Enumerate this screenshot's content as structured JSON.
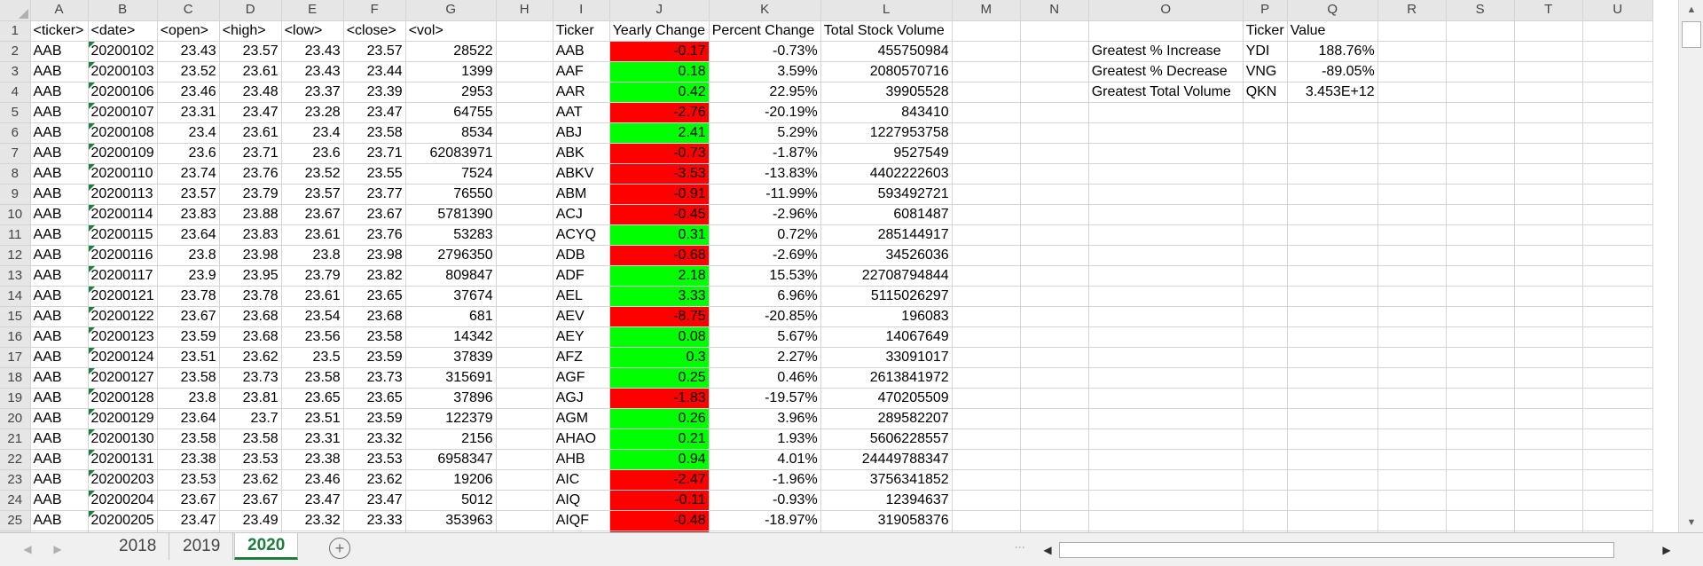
{
  "columns": [
    "A",
    "B",
    "C",
    "D",
    "E",
    "F",
    "G",
    "H",
    "I",
    "J",
    "K",
    "L",
    "M",
    "N",
    "O",
    "P",
    "Q",
    "R",
    "S",
    "T",
    "U"
  ],
  "header_row": {
    "row": "1",
    "A": "<ticker>",
    "B": "<date>",
    "C": "<open>",
    "D": "<high>",
    "E": "<low>",
    "F": "<close>",
    "G": "<vol>",
    "I": "Ticker",
    "J": "Yearly Change",
    "K": "Percent Change",
    "L": "Total Stock Volume",
    "P": "Ticker",
    "Q": "Value"
  },
  "raw_rows": [
    {
      "row": "2",
      "ticker": "AAB",
      "date": "20200102",
      "open": "23.43",
      "high": "23.57",
      "low": "23.43",
      "close": "23.57",
      "vol": "28522"
    },
    {
      "row": "3",
      "ticker": "AAB",
      "date": "20200103",
      "open": "23.52",
      "high": "23.61",
      "low": "23.43",
      "close": "23.44",
      "vol": "1399"
    },
    {
      "row": "4",
      "ticker": "AAB",
      "date": "20200106",
      "open": "23.46",
      "high": "23.48",
      "low": "23.37",
      "close": "23.39",
      "vol": "2953"
    },
    {
      "row": "5",
      "ticker": "AAB",
      "date": "20200107",
      "open": "23.31",
      "high": "23.47",
      "low": "23.28",
      "close": "23.47",
      "vol": "64755"
    },
    {
      "row": "6",
      "ticker": "AAB",
      "date": "20200108",
      "open": "23.4",
      "high": "23.61",
      "low": "23.4",
      "close": "23.58",
      "vol": "8534"
    },
    {
      "row": "7",
      "ticker": "AAB",
      "date": "20200109",
      "open": "23.6",
      "high": "23.71",
      "low": "23.6",
      "close": "23.71",
      "vol": "62083971"
    },
    {
      "row": "8",
      "ticker": "AAB",
      "date": "20200110",
      "open": "23.74",
      "high": "23.76",
      "low": "23.52",
      "close": "23.55",
      "vol": "7524"
    },
    {
      "row": "9",
      "ticker": "AAB",
      "date": "20200113",
      "open": "23.57",
      "high": "23.79",
      "low": "23.57",
      "close": "23.77",
      "vol": "76550"
    },
    {
      "row": "10",
      "ticker": "AAB",
      "date": "20200114",
      "open": "23.83",
      "high": "23.88",
      "low": "23.67",
      "close": "23.67",
      "vol": "5781390"
    },
    {
      "row": "11",
      "ticker": "AAB",
      "date": "20200115",
      "open": "23.64",
      "high": "23.83",
      "low": "23.61",
      "close": "23.76",
      "vol": "53283"
    },
    {
      "row": "12",
      "ticker": "AAB",
      "date": "20200116",
      "open": "23.8",
      "high": "23.98",
      "low": "23.8",
      "close": "23.98",
      "vol": "2796350"
    },
    {
      "row": "13",
      "ticker": "AAB",
      "date": "20200117",
      "open": "23.9",
      "high": "23.95",
      "low": "23.79",
      "close": "23.82",
      "vol": "809847"
    },
    {
      "row": "14",
      "ticker": "AAB",
      "date": "20200121",
      "open": "23.78",
      "high": "23.78",
      "low": "23.61",
      "close": "23.65",
      "vol": "37674"
    },
    {
      "row": "15",
      "ticker": "AAB",
      "date": "20200122",
      "open": "23.67",
      "high": "23.68",
      "low": "23.54",
      "close": "23.68",
      "vol": "681"
    },
    {
      "row": "16",
      "ticker": "AAB",
      "date": "20200123",
      "open": "23.59",
      "high": "23.68",
      "low": "23.56",
      "close": "23.58",
      "vol": "14342"
    },
    {
      "row": "17",
      "ticker": "AAB",
      "date": "20200124",
      "open": "23.51",
      "high": "23.62",
      "low": "23.5",
      "close": "23.59",
      "vol": "37839"
    },
    {
      "row": "18",
      "ticker": "AAB",
      "date": "20200127",
      "open": "23.58",
      "high": "23.73",
      "low": "23.58",
      "close": "23.73",
      "vol": "315691"
    },
    {
      "row": "19",
      "ticker": "AAB",
      "date": "20200128",
      "open": "23.8",
      "high": "23.81",
      "low": "23.65",
      "close": "23.65",
      "vol": "37896"
    },
    {
      "row": "20",
      "ticker": "AAB",
      "date": "20200129",
      "open": "23.64",
      "high": "23.7",
      "low": "23.51",
      "close": "23.59",
      "vol": "122379"
    },
    {
      "row": "21",
      "ticker": "AAB",
      "date": "20200130",
      "open": "23.58",
      "high": "23.58",
      "low": "23.31",
      "close": "23.32",
      "vol": "2156"
    },
    {
      "row": "22",
      "ticker": "AAB",
      "date": "20200131",
      "open": "23.38",
      "high": "23.53",
      "low": "23.38",
      "close": "23.53",
      "vol": "6958347"
    },
    {
      "row": "23",
      "ticker": "AAB",
      "date": "20200203",
      "open": "23.53",
      "high": "23.62",
      "low": "23.46",
      "close": "23.62",
      "vol": "19206"
    },
    {
      "row": "24",
      "ticker": "AAB",
      "date": "20200204",
      "open": "23.67",
      "high": "23.67",
      "low": "23.47",
      "close": "23.47",
      "vol": "5012"
    },
    {
      "row": "25",
      "ticker": "AAB",
      "date": "20200205",
      "open": "23.47",
      "high": "23.49",
      "low": "23.32",
      "close": "23.33",
      "vol": "353963"
    }
  ],
  "summary_rows": [
    {
      "ticker": "AAB",
      "yearly_change": "-0.17",
      "percent_change": "-0.73%",
      "total_volume": "455750984",
      "fill": "red"
    },
    {
      "ticker": "AAF",
      "yearly_change": "0.18",
      "percent_change": "3.59%",
      "total_volume": "2080570716",
      "fill": "green"
    },
    {
      "ticker": "AAR",
      "yearly_change": "0.42",
      "percent_change": "22.95%",
      "total_volume": "39905528",
      "fill": "green"
    },
    {
      "ticker": "AAT",
      "yearly_change": "-2.76",
      "percent_change": "-20.19%",
      "total_volume": "843410",
      "fill": "red"
    },
    {
      "ticker": "ABJ",
      "yearly_change": "2.41",
      "percent_change": "5.29%",
      "total_volume": "1227953758",
      "fill": "green"
    },
    {
      "ticker": "ABK",
      "yearly_change": "-0.73",
      "percent_change": "-1.87%",
      "total_volume": "9527549",
      "fill": "red"
    },
    {
      "ticker": "ABKV",
      "yearly_change": "-3.53",
      "percent_change": "-13.83%",
      "total_volume": "4402222603",
      "fill": "red"
    },
    {
      "ticker": "ABM",
      "yearly_change": "-0.91",
      "percent_change": "-11.99%",
      "total_volume": "593492721",
      "fill": "red"
    },
    {
      "ticker": "ACJ",
      "yearly_change": "-0.45",
      "percent_change": "-2.96%",
      "total_volume": "6081487",
      "fill": "red"
    },
    {
      "ticker": "ACYQ",
      "yearly_change": "0.31",
      "percent_change": "0.72%",
      "total_volume": "285144917",
      "fill": "green"
    },
    {
      "ticker": "ADB",
      "yearly_change": "-0.68",
      "percent_change": "-2.69%",
      "total_volume": "34526036",
      "fill": "red"
    },
    {
      "ticker": "ADF",
      "yearly_change": "2.18",
      "percent_change": "15.53%",
      "total_volume": "22708794844",
      "fill": "green"
    },
    {
      "ticker": "AEL",
      "yearly_change": "3.33",
      "percent_change": "6.96%",
      "total_volume": "5115026297",
      "fill": "green"
    },
    {
      "ticker": "AEV",
      "yearly_change": "-8.75",
      "percent_change": "-20.85%",
      "total_volume": "196083",
      "fill": "red"
    },
    {
      "ticker": "AEY",
      "yearly_change": "0.08",
      "percent_change": "5.67%",
      "total_volume": "14067649",
      "fill": "green"
    },
    {
      "ticker": "AFZ",
      "yearly_change": "0.3",
      "percent_change": "2.27%",
      "total_volume": "33091017",
      "fill": "green"
    },
    {
      "ticker": "AGF",
      "yearly_change": "0.25",
      "percent_change": "0.46%",
      "total_volume": "2613841972",
      "fill": "green"
    },
    {
      "ticker": "AGJ",
      "yearly_change": "-1.83",
      "percent_change": "-19.57%",
      "total_volume": "470205509",
      "fill": "red"
    },
    {
      "ticker": "AGM",
      "yearly_change": "0.26",
      "percent_change": "3.96%",
      "total_volume": "289582207",
      "fill": "green"
    },
    {
      "ticker": "AHAO",
      "yearly_change": "0.21",
      "percent_change": "1.93%",
      "total_volume": "5606228557",
      "fill": "green"
    },
    {
      "ticker": "AHB",
      "yearly_change": "0.94",
      "percent_change": "4.01%",
      "total_volume": "24449788347",
      "fill": "green"
    },
    {
      "ticker": "AIC",
      "yearly_change": "-2.47",
      "percent_change": "-1.96%",
      "total_volume": "3756341852",
      "fill": "red"
    },
    {
      "ticker": "AIQ",
      "yearly_change": "-0.11",
      "percent_change": "-0.93%",
      "total_volume": "12394637",
      "fill": "red"
    },
    {
      "ticker": "AIQF",
      "yearly_change": "-0.48",
      "percent_change": "-18.97%",
      "total_volume": "319058376",
      "fill": "red"
    }
  ],
  "greatest": [
    {
      "label": "Greatest % Increase",
      "ticker": "YDI",
      "value": "188.76%"
    },
    {
      "label": "Greatest % Decrease",
      "ticker": "VNG",
      "value": "-89.05%"
    },
    {
      "label": "Greatest Total Volume",
      "ticker": "QKN",
      "value": "3.453E+12"
    }
  ],
  "sheet_tabs": [
    {
      "label": "2018",
      "active": false
    },
    {
      "label": "2019",
      "active": false
    },
    {
      "label": "2020",
      "active": true
    }
  ],
  "colors": {
    "negative_fill": "#ff0000",
    "positive_fill": "#00ff00",
    "accent": "#1d7d3d"
  },
  "icons": {
    "add_sheet": "plus-circle-icon",
    "scroll_up": "triangle-up-icon",
    "scroll_down": "triangle-down-icon",
    "scroll_left": "triangle-left-icon",
    "scroll_right": "triangle-right-icon"
  }
}
